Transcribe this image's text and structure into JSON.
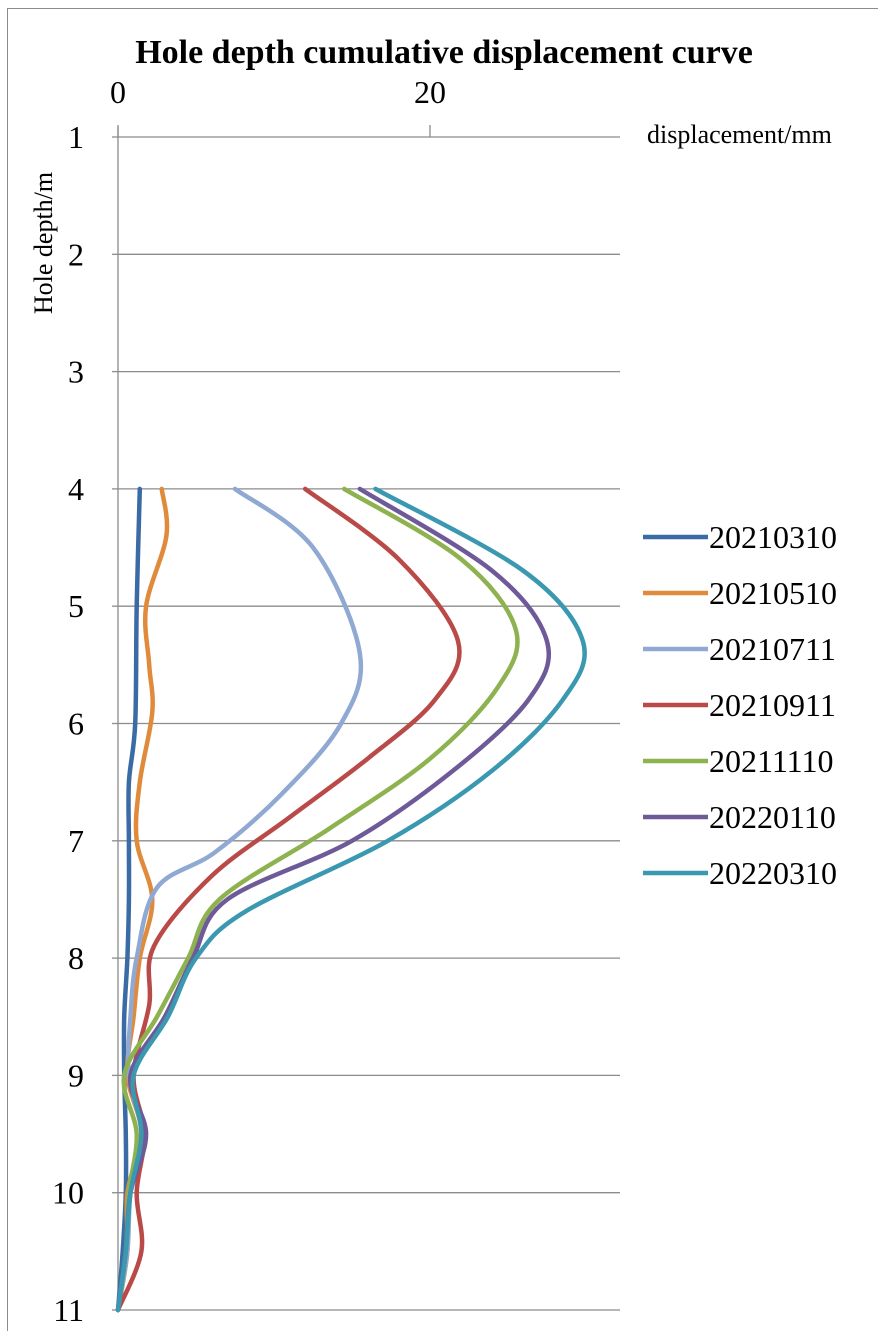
{
  "chart_data": {
    "type": "line",
    "title": "Hole depth cumulative displacement curve",
    "xlabel": "displacement/mm",
    "ylabel": "Hole depth/m",
    "x_axis_position": "top",
    "y_axis_reversed": true,
    "xlim": [
      0,
      32
    ],
    "ylim": [
      1,
      11
    ],
    "x_ticks": [
      0,
      20
    ],
    "x_tick_labels": [
      "0",
      "20"
    ],
    "y_ticks": [
      1,
      2,
      3,
      4,
      5,
      6,
      7,
      8,
      9,
      10,
      11
    ],
    "y_tick_labels": [
      "1",
      "2",
      "3",
      "4",
      "5",
      "6",
      "7",
      "8",
      "9",
      "10",
      "11"
    ],
    "grid": "horizontal",
    "legend_position": "right",
    "series": [
      {
        "name": "20210310",
        "color": "#3b6ba5",
        "points": [
          [
            1.4,
            4
          ],
          [
            1.2,
            5
          ],
          [
            1.1,
            6
          ],
          [
            0.7,
            6.5
          ],
          [
            0.7,
            7
          ],
          [
            0.7,
            7.5
          ],
          [
            0.6,
            8
          ],
          [
            0.4,
            8.5
          ],
          [
            0.4,
            9
          ],
          [
            0.5,
            9.5
          ],
          [
            0.5,
            10
          ],
          [
            0.3,
            10.5
          ],
          [
            0,
            11
          ]
        ]
      },
      {
        "name": "20210510",
        "color": "#e08a3c",
        "points": [
          [
            2.8,
            4
          ],
          [
            3.1,
            4.4
          ],
          [
            1.8,
            5
          ],
          [
            2,
            5.5
          ],
          [
            2.2,
            5.9
          ],
          [
            1.4,
            6.5
          ],
          [
            1.2,
            7
          ],
          [
            2.2,
            7.5
          ],
          [
            1.4,
            8
          ],
          [
            1,
            8.5
          ],
          [
            0.6,
            9
          ],
          [
            1.5,
            9.5
          ],
          [
            0.6,
            10
          ],
          [
            0.6,
            10.5
          ],
          [
            0,
            11
          ]
        ]
      },
      {
        "name": "20210711",
        "color": "#8fa9d2",
        "points": [
          [
            7.5,
            4
          ],
          [
            12.5,
            4.5
          ],
          [
            15.5,
            5.4
          ],
          [
            14.3,
            6
          ],
          [
            10.5,
            6.6
          ],
          [
            6.2,
            7.1
          ],
          [
            2.5,
            7.4
          ],
          [
            1.2,
            8
          ],
          [
            0.8,
            8.5
          ],
          [
            0.7,
            9
          ],
          [
            1.5,
            9.5
          ],
          [
            0.8,
            10
          ],
          [
            0.6,
            10.5
          ],
          [
            0,
            11
          ]
        ]
      },
      {
        "name": "20210911",
        "color": "#b94a48",
        "points": [
          [
            12,
            4
          ],
          [
            18,
            4.6
          ],
          [
            21.8,
            5.3
          ],
          [
            20.3,
            5.8
          ],
          [
            16,
            6.3
          ],
          [
            11,
            6.8
          ],
          [
            6,
            7.3
          ],
          [
            2.3,
            7.9
          ],
          [
            2,
            8.4
          ],
          [
            1,
            9
          ],
          [
            1.7,
            9.5
          ],
          [
            1.2,
            10
          ],
          [
            1.5,
            10.5
          ],
          [
            0,
            11
          ]
        ]
      },
      {
        "name": "20211110",
        "color": "#8db24f",
        "points": [
          [
            14.5,
            4
          ],
          [
            22,
            4.6
          ],
          [
            25.5,
            5.2
          ],
          [
            24.3,
            5.7
          ],
          [
            20,
            6.3
          ],
          [
            13.5,
            6.9
          ],
          [
            6.5,
            7.5
          ],
          [
            4.5,
            8
          ],
          [
            2.5,
            8.5
          ],
          [
            0.4,
            9
          ],
          [
            1.2,
            9.5
          ],
          [
            0.7,
            10
          ],
          [
            0.5,
            10.5
          ],
          [
            0,
            11
          ]
        ]
      },
      {
        "name": "20220110",
        "color": "#6e5a98",
        "points": [
          [
            15.5,
            4
          ],
          [
            24,
            4.7
          ],
          [
            27.5,
            5.3
          ],
          [
            26.3,
            5.8
          ],
          [
            21.5,
            6.4
          ],
          [
            15,
            7
          ],
          [
            7,
            7.5
          ],
          [
            4.8,
            8
          ],
          [
            3,
            8.5
          ],
          [
            0.8,
            9
          ],
          [
            1.8,
            9.5
          ],
          [
            0.8,
            10
          ],
          [
            0.5,
            10.5
          ],
          [
            0,
            11
          ]
        ]
      },
      {
        "name": "20220310",
        "color": "#3a98b0",
        "points": [
          [
            16.5,
            4
          ],
          [
            26,
            4.7
          ],
          [
            29.8,
            5.3
          ],
          [
            28.5,
            5.8
          ],
          [
            24,
            6.4
          ],
          [
            17.3,
            7
          ],
          [
            8.2,
            7.6
          ],
          [
            5,
            8
          ],
          [
            3.2,
            8.5
          ],
          [
            1,
            9
          ],
          [
            1.5,
            9.5
          ],
          [
            0.8,
            10
          ],
          [
            0.5,
            10.5
          ],
          [
            0,
            11
          ]
        ]
      }
    ]
  }
}
